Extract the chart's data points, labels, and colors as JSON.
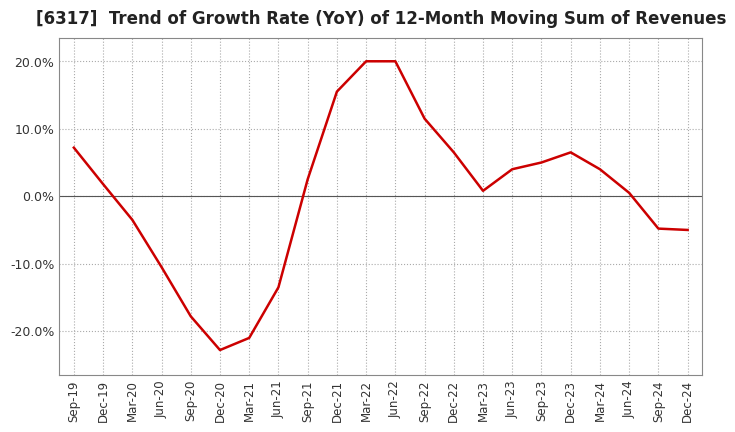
{
  "title": "[6317]  Trend of Growth Rate (YoY) of 12-Month Moving Sum of Revenues",
  "title_fontsize": 12,
  "line_color": "#cc0000",
  "background_color": "#ffffff",
  "plot_bg_color": "#ffffff",
  "grid_color": "#aaaaaa",
  "ylim": [
    -0.265,
    0.235
  ],
  "yticks": [
    -0.2,
    -0.1,
    0.0,
    0.1,
    0.2
  ],
  "ytick_labels": [
    "-20.0%",
    "-10.0%",
    "0.0%",
    "10.0%",
    "20.0%"
  ],
  "dates": [
    "Sep-19",
    "Dec-19",
    "Mar-20",
    "Jun-20",
    "Sep-20",
    "Dec-20",
    "Mar-21",
    "Jun-21",
    "Sep-21",
    "Dec-21",
    "Mar-22",
    "Jun-22",
    "Sep-22",
    "Dec-22",
    "Mar-23",
    "Jun-23",
    "Sep-23",
    "Dec-23",
    "Mar-24",
    "Jun-24",
    "Sep-24",
    "Dec-24"
  ],
  "values": [
    0.072,
    0.018,
    -0.035,
    -0.105,
    -0.178,
    -0.228,
    -0.21,
    -0.135,
    0.025,
    0.155,
    0.2,
    0.2,
    0.115,
    0.065,
    0.008,
    0.04,
    0.05,
    0.065,
    0.04,
    0.005,
    -0.048,
    -0.05
  ]
}
